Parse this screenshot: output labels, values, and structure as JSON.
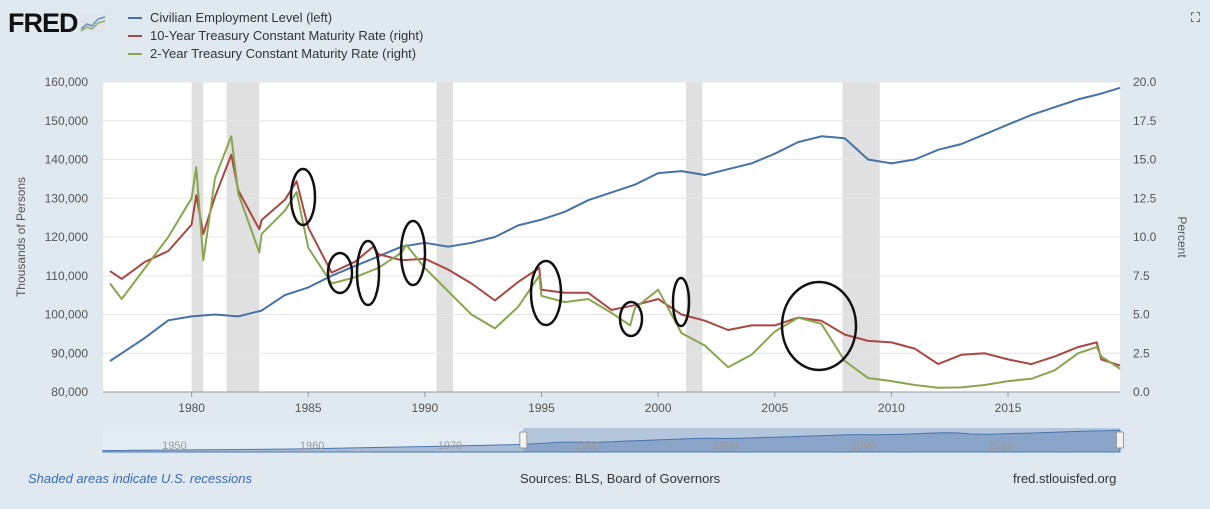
{
  "header": {
    "logo": "FRED",
    "fullscreen_icon": "expand-icon"
  },
  "footer": {
    "note": "Shaded areas indicate U.S. recessions",
    "sources": "Sources: BLS, Board of Governors",
    "site": "fred.stlouisfed.org"
  },
  "navigator": {
    "tick_labels": [
      "1950",
      "1960",
      "1970",
      "1980",
      "1990",
      "2000",
      "2010"
    ],
    "range": [
      1976.5,
      2019.8
    ]
  },
  "chart_data": {
    "type": "line",
    "xlim": [
      1976.2,
      2019.8
    ],
    "x_ticks": [
      "1980",
      "1985",
      "1990",
      "1995",
      "2000",
      "2005",
      "2010",
      "2015"
    ],
    "ylabel_left": "Thousands of Persons",
    "ylim_left": [
      80000,
      160000
    ],
    "y_ticks_left": [
      "80,000",
      "90,000",
      "100,000",
      "110,000",
      "120,000",
      "130,000",
      "140,000",
      "150,000",
      "160,000"
    ],
    "ylabel_right": "Percent",
    "ylim_right": [
      0,
      20
    ],
    "y_ticks_right": [
      "0.0",
      "2.5",
      "5.0",
      "7.5",
      "10.0",
      "12.5",
      "15.0",
      "17.5",
      "20.0"
    ],
    "grid": true,
    "legend_position": "top-left",
    "recessions": [
      [
        1980.0,
        1980.5
      ],
      [
        1981.5,
        1982.9
      ],
      [
        1990.5,
        1991.2
      ],
      [
        2001.2,
        2001.9
      ],
      [
        2007.9,
        2009.5
      ]
    ],
    "series": [
      {
        "name": "Civilian Employment Level (left)",
        "axis": "left",
        "color": "#4572a7",
        "x": [
          1976.5,
          1977,
          1978,
          1979,
          1980,
          1981,
          1982,
          1983,
          1984,
          1985,
          1986,
          1987,
          1988,
          1989,
          1990,
          1991,
          1992,
          1993,
          1994,
          1995,
          1996,
          1997,
          1998,
          1999,
          2000,
          2001,
          2002,
          2003,
          2004,
          2005,
          2006,
          2007,
          2008,
          2009,
          2010,
          2011,
          2012,
          2013,
          2014,
          2015,
          2016,
          2017,
          2018,
          2019,
          2019.8
        ],
        "y": [
          88000,
          90000,
          94000,
          98500,
          99500,
          100000,
          99500,
          101000,
          105000,
          107000,
          110000,
          112500,
          115000,
          117500,
          118500,
          117500,
          118500,
          120000,
          123000,
          124500,
          126500,
          129500,
          131500,
          133500,
          136500,
          137000,
          136000,
          137500,
          139000,
          141500,
          144500,
          146000,
          145500,
          140000,
          139000,
          140000,
          142500,
          144000,
          146500,
          149000,
          151500,
          153500,
          155500,
          157000,
          158500
        ]
      },
      {
        "name": "10-Year Treasury Constant Maturity Rate (right)",
        "axis": "right",
        "color": "#aa4643",
        "x": [
          1976.5,
          1977,
          1978,
          1979,
          1980,
          1980.2,
          1980.5,
          1981,
          1981.7,
          1982,
          1982.9,
          1983,
          1984,
          1984.5,
          1985,
          1986,
          1987,
          1987.8,
          1988,
          1989,
          1990,
          1991,
          1992,
          1993,
          1994,
          1994.9,
          1995,
          1996,
          1997,
          1998,
          1999,
          2000,
          2001,
          2002,
          2003,
          2004,
          2005,
          2006,
          2007,
          2008,
          2009,
          2010,
          2011,
          2012,
          2013,
          2014,
          2015,
          2016,
          2017,
          2018,
          2018.8,
          2019,
          2019.8
        ],
        "y": [
          7.8,
          7.3,
          8.4,
          9.1,
          10.8,
          12.7,
          10.2,
          12.6,
          15.3,
          13.0,
          10.5,
          11.1,
          12.4,
          13.6,
          10.6,
          7.7,
          8.4,
          9.4,
          8.9,
          8.5,
          8.6,
          7.9,
          7.0,
          5.9,
          7.1,
          8.0,
          6.6,
          6.4,
          6.4,
          5.3,
          5.6,
          6.0,
          5.0,
          4.6,
          4.0,
          4.3,
          4.3,
          4.8,
          4.6,
          3.7,
          3.3,
          3.2,
          2.8,
          1.8,
          2.4,
          2.5,
          2.1,
          1.8,
          2.3,
          2.9,
          3.2,
          2.1,
          1.7
        ]
      },
      {
        "name": "2-Year Treasury Constant Maturity Rate (right)",
        "axis": "right",
        "color": "#89a54e",
        "x": [
          1976.5,
          1977,
          1978,
          1979,
          1980,
          1980.2,
          1980.5,
          1981,
          1981.7,
          1982,
          1982.9,
          1983,
          1984,
          1984.5,
          1985,
          1986,
          1987,
          1988,
          1989,
          1989.2,
          1990,
          1991,
          1992,
          1993,
          1994,
          1994.9,
          1995,
          1996,
          1997,
          1998,
          1998.8,
          1999,
          2000,
          2001,
          2002,
          2003,
          2004,
          2005,
          2006,
          2007,
          2008,
          2009,
          2010,
          2011,
          2012,
          2013,
          2014,
          2015,
          2016,
          2017,
          2018,
          2018.8,
          2019,
          2019.8
        ],
        "y": [
          7.0,
          6.0,
          8.0,
          10.0,
          12.5,
          14.5,
          8.5,
          13.8,
          16.5,
          12.8,
          9.0,
          10.2,
          11.7,
          12.9,
          9.3,
          7.0,
          7.4,
          8.0,
          9.0,
          9.5,
          8.0,
          6.5,
          5.0,
          4.1,
          5.5,
          7.5,
          6.2,
          5.8,
          6.0,
          5.1,
          4.3,
          5.4,
          6.6,
          3.8,
          3.0,
          1.6,
          2.4,
          3.9,
          4.8,
          4.4,
          2.0,
          0.9,
          0.7,
          0.45,
          0.27,
          0.3,
          0.45,
          0.7,
          0.85,
          1.4,
          2.5,
          2.9,
          2.3,
          1.5
        ]
      }
    ]
  }
}
